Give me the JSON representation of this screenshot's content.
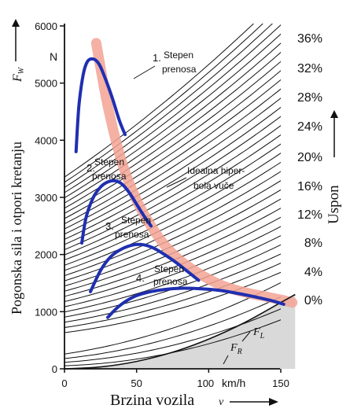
{
  "chart_data": {
    "type": "line",
    "title": "",
    "xlabel": "Brzina vozila",
    "x_symbol": "v",
    "x_unit": "km/h",
    "ylabel": "Pogonska sila i otpori kretanju",
    "y_symbol": "F",
    "y_symbol_sub": "W",
    "y_unit": "N",
    "right_label": "Uspon",
    "xlim": [
      0,
      160
    ],
    "ylim": [
      0,
      6000
    ],
    "x_ticks": [
      "0",
      "50",
      "100",
      "150"
    ],
    "y_ticks": [
      "0",
      "1000",
      "2000",
      "3000",
      "4000",
      "5000",
      "6000"
    ],
    "grade_labels": [
      "0%",
      "4%",
      "8%",
      "12%",
      "16%",
      "20%",
      "24%",
      "28%",
      "32%",
      "36%"
    ],
    "series": [
      {
        "name": "1. Stepen prenosa",
        "label_num": "1.",
        "label_line1": "Stepen",
        "label_line2": "prenosa",
        "x": [
          8,
          10,
          13,
          16,
          20,
          24,
          28,
          33,
          38,
          42
        ],
        "y": [
          3800,
          4600,
          5150,
          5380,
          5420,
          5330,
          5100,
          4750,
          4350,
          4100
        ]
      },
      {
        "name": "2. Stepen prenosa",
        "label_num": "2.",
        "label_line1": "Stepen",
        "label_line2": "prenosa",
        "x": [
          12,
          15,
          20,
          25,
          30,
          35,
          40,
          45,
          50,
          55,
          60
        ],
        "y": [
          2200,
          2650,
          3000,
          3180,
          3270,
          3290,
          3230,
          3080,
          2880,
          2680,
          2500
        ]
      },
      {
        "name": "3. Stepen prenosa",
        "label_num": "3.",
        "label_line1": "Stepen",
        "label_line2": "prenosa",
        "x": [
          18,
          25,
          32,
          40,
          48,
          55,
          62,
          70,
          78,
          86,
          93
        ],
        "y": [
          1350,
          1720,
          1960,
          2100,
          2170,
          2170,
          2110,
          1990,
          1850,
          1690,
          1550
        ]
      },
      {
        "name": "4. Stepen prenosa",
        "label_num": "4.",
        "label_line1": "Stepen",
        "label_line2": "prenosa",
        "x": [
          30,
          38,
          48,
          58,
          70,
          82,
          95,
          108,
          120,
          132,
          144,
          152
        ],
        "y": [
          900,
          1100,
          1260,
          1340,
          1390,
          1410,
          1400,
          1370,
          1320,
          1260,
          1190,
          1130
        ]
      }
    ],
    "ideal_hyperbola": {
      "label_line1": "Idealna hiper-",
      "label_line2": "bola vuče",
      "x": [
        22,
        30,
        40,
        50,
        60,
        70,
        80,
        90,
        100,
        110,
        120,
        130,
        140,
        150,
        158
      ],
      "y": [
        5700,
        4600,
        3600,
        2950,
        2500,
        2150,
        1900,
        1720,
        1570,
        1450,
        1370,
        1310,
        1260,
        1210,
        1160
      ]
    },
    "resistance_curves": [
      {
        "label": "F",
        "label_sub": "L",
        "x": [
          0,
          25,
          50,
          75,
          100,
          125,
          150,
          160
        ],
        "y": [
          0,
          33,
          130,
          290,
          520,
          810,
          1160,
          1300
        ]
      },
      {
        "label": "F",
        "label_sub": "R",
        "x": [
          0,
          160
        ],
        "y": [
          0,
          0
        ]
      }
    ],
    "grid": false,
    "colors": {
      "gear": "#1f2fb0",
      "hyperbola": "#f2a394",
      "shade": "#d9d9d9",
      "curves": "#111111"
    }
  }
}
